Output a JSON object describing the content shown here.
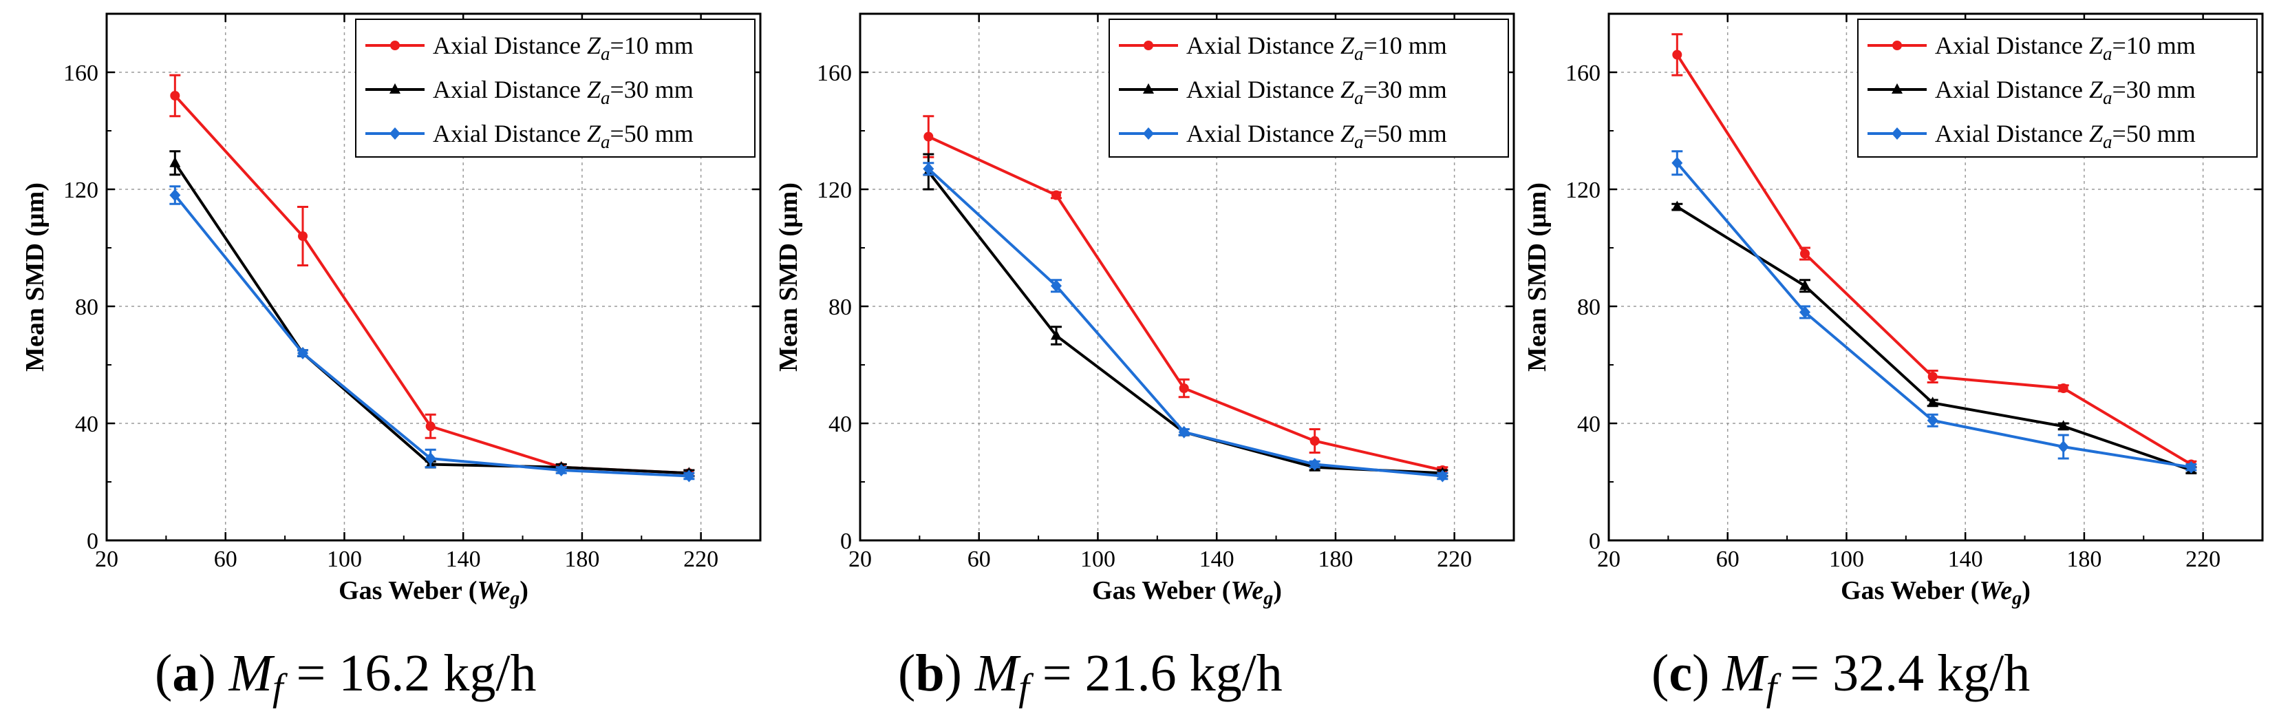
{
  "chart_data": [
    {
      "type": "line",
      "panel": "a",
      "caption": {
        "label": "a",
        "symbol": "M",
        "subscript": "f",
        "value": "= 16.2 kg/h"
      },
      "xlabel": {
        "text": "Gas Weber (",
        "symbol": "We",
        "subscript": "g",
        "close": ")"
      },
      "ylabel": "Mean SMD (μm)",
      "xlim": [
        20,
        240
      ],
      "ylim": [
        0,
        180
      ],
      "xticks": [
        20,
        60,
        100,
        140,
        180,
        220
      ],
      "yticks": [
        0,
        40,
        80,
        120,
        160
      ],
      "grid": true,
      "legend_position": "top-right",
      "x": [
        43,
        86,
        129,
        173,
        216
      ],
      "series": [
        {
          "name": "Axial Distance Za=10 mm",
          "label_prefix": "Axial Distance ",
          "symbol": "Z",
          "subscript": "a",
          "label_suffix": "=10 mm",
          "color": "#ee1c1c",
          "marker": "circle",
          "values": [
            152,
            104,
            39,
            25,
            23
          ],
          "errors": [
            7,
            10,
            4,
            1,
            1
          ]
        },
        {
          "name": "Axial Distance Za=30 mm",
          "label_prefix": "Axial Distance ",
          "symbol": "Z",
          "subscript": "a",
          "label_suffix": "=30 mm",
          "color": "#000000",
          "marker": "triangle",
          "values": [
            129,
            64,
            26,
            25,
            23
          ],
          "errors": [
            4,
            1,
            1,
            1,
            1
          ]
        },
        {
          "name": "Axial Distance Za=50 mm",
          "label_prefix": "Axial Distance ",
          "symbol": "Z",
          "subscript": "a",
          "label_suffix": "=50 mm",
          "color": "#1f6fd6",
          "marker": "diamond",
          "values": [
            118,
            64,
            28,
            24,
            22
          ],
          "errors": [
            3,
            1,
            3,
            1,
            1
          ]
        }
      ]
    },
    {
      "type": "line",
      "panel": "b",
      "caption": {
        "label": "b",
        "symbol": "M",
        "subscript": "f",
        "value": "= 21.6 kg/h"
      },
      "xlabel": {
        "text": "Gas Weber (",
        "symbol": "We",
        "subscript": "g",
        "close": ")"
      },
      "ylabel": "Mean SMD (μm)",
      "xlim": [
        20,
        240
      ],
      "ylim": [
        0,
        180
      ],
      "xticks": [
        20,
        60,
        100,
        140,
        180,
        220
      ],
      "yticks": [
        0,
        40,
        80,
        120,
        160
      ],
      "grid": true,
      "legend_position": "top-right",
      "x": [
        43,
        86,
        129,
        173,
        216
      ],
      "series": [
        {
          "name": "Axial Distance Za=10 mm",
          "label_prefix": "Axial Distance ",
          "symbol": "Z",
          "subscript": "a",
          "label_suffix": "=10 mm",
          "color": "#ee1c1c",
          "marker": "circle",
          "values": [
            138,
            118,
            52,
            34,
            24
          ],
          "errors": [
            7,
            1,
            3,
            4,
            1
          ]
        },
        {
          "name": "Axial Distance Za=30 mm",
          "label_prefix": "Axial Distance ",
          "symbol": "Z",
          "subscript": "a",
          "label_suffix": "=30 mm",
          "color": "#000000",
          "marker": "triangle",
          "values": [
            126,
            70,
            37,
            25,
            23
          ],
          "errors": [
            6,
            3,
            1,
            1,
            1
          ]
        },
        {
          "name": "Axial Distance Za=50 mm",
          "label_prefix": "Axial Distance ",
          "symbol": "Z",
          "subscript": "a",
          "label_suffix": "=50 mm",
          "color": "#1f6fd6",
          "marker": "diamond",
          "values": [
            127,
            87,
            37,
            26,
            22
          ],
          "errors": [
            2,
            2,
            1,
            1,
            1
          ]
        }
      ]
    },
    {
      "type": "line",
      "panel": "c",
      "caption": {
        "label": "c",
        "symbol": "M",
        "subscript": "f",
        "value": "= 32.4 kg/h"
      },
      "xlabel": {
        "text": "Gas Weber (",
        "symbol": "We",
        "subscript": "g",
        "close": ")"
      },
      "ylabel": "Mean SMD (μm)",
      "xlim": [
        20,
        240
      ],
      "ylim": [
        0,
        180
      ],
      "xticks": [
        20,
        60,
        100,
        140,
        180,
        220
      ],
      "yticks": [
        0,
        40,
        80,
        120,
        160
      ],
      "grid": true,
      "legend_position": "top-right",
      "x": [
        43,
        86,
        129,
        173,
        216
      ],
      "series": [
        {
          "name": "Axial Distance Za=10 mm",
          "label_prefix": "Axial Distance ",
          "symbol": "Z",
          "subscript": "a",
          "label_suffix": "=10 mm",
          "color": "#ee1c1c",
          "marker": "circle",
          "values": [
            166,
            98,
            56,
            52,
            26
          ],
          "errors": [
            7,
            2,
            2,
            1,
            1
          ]
        },
        {
          "name": "Axial Distance Za=30 mm",
          "label_prefix": "Axial Distance ",
          "symbol": "Z",
          "subscript": "a",
          "label_suffix": "=30 mm",
          "color": "#000000",
          "marker": "triangle",
          "values": [
            114,
            87,
            47,
            39,
            24
          ],
          "errors": [
            1,
            2,
            1,
            1,
            1
          ]
        },
        {
          "name": "Axial Distance Za=50 mm",
          "label_prefix": "Axial Distance ",
          "symbol": "Z",
          "subscript": "a",
          "label_suffix": "=50 mm",
          "color": "#1f6fd6",
          "marker": "diamond",
          "values": [
            129,
            78,
            41,
            32,
            25
          ],
          "errors": [
            4,
            2,
            2,
            4,
            1
          ]
        }
      ]
    }
  ]
}
